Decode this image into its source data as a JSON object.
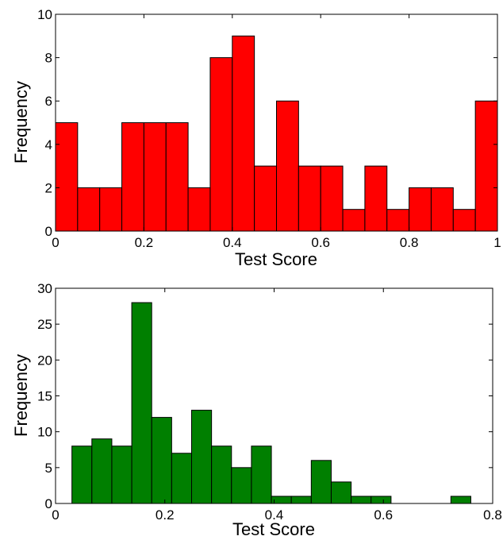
{
  "chart_data": [
    {
      "type": "bar",
      "title": "",
      "xlabel": "Test Score",
      "ylabel": "Frequency",
      "xlim": [
        0,
        1
      ],
      "ylim": [
        0,
        10
      ],
      "xticks": [
        0,
        0.2,
        0.4,
        0.6,
        0.8,
        1
      ],
      "xtick_labels": [
        "0",
        "0.2",
        "0.4",
        "0.6",
        "0.8",
        "1"
      ],
      "yticks": [
        0,
        2,
        4,
        6,
        8,
        10
      ],
      "ytick_labels": [
        "0",
        "2",
        "4",
        "6",
        "8",
        "10"
      ],
      "grid": false,
      "color": "#ff0000",
      "bin_start": 0,
      "bin_width": 0.05,
      "values": [
        5,
        2,
        2,
        5,
        5,
        5,
        2,
        8,
        9,
        3,
        6,
        3,
        3,
        1,
        3,
        1,
        2,
        2,
        1,
        6
      ]
    },
    {
      "type": "bar",
      "title": "",
      "xlabel": "Test Score",
      "ylabel": "Frequency",
      "xlim": [
        0,
        0.8
      ],
      "ylim": [
        0,
        30
      ],
      "xticks": [
        0,
        0.2,
        0.4,
        0.6,
        0.8
      ],
      "xtick_labels": [
        "0",
        "0.2",
        "0.4",
        "0.6",
        "0.8"
      ],
      "yticks": [
        0,
        5,
        10,
        15,
        20,
        25,
        30
      ],
      "ytick_labels": [
        "0",
        "5",
        "10",
        "15",
        "20",
        "25",
        "30"
      ],
      "grid": false,
      "color": "#007f00",
      "bin_start": 0.03,
      "bin_width": 0.0365,
      "values": [
        8,
        9,
        8,
        28,
        12,
        7,
        13,
        8,
        5,
        8,
        1,
        1,
        6,
        3,
        1,
        1,
        0,
        0,
        0,
        1
      ]
    }
  ]
}
